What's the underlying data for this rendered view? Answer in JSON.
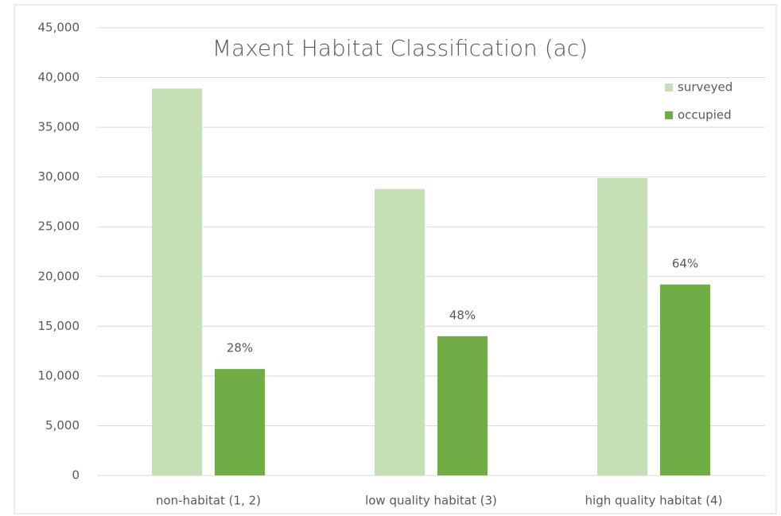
{
  "chart_data": {
    "type": "bar",
    "title": "Maxent Habitat Classification (ac)",
    "categories": [
      "non-habitat (1, 2)",
      "low quality habitat (3)",
      "high quality habitat (4)"
    ],
    "series": [
      {
        "name": "surveyed",
        "color": "#c5e0b4",
        "values": [
          38900,
          28800,
          29900
        ]
      },
      {
        "name": "occupied",
        "color": "#70ad47",
        "values": [
          10700,
          14000,
          19200
        ],
        "annotations": [
          "28%",
          "48%",
          "64%"
        ]
      }
    ],
    "ylim": [
      0,
      45000
    ],
    "yticks": [
      0,
      {
        "value": 5000,
        "label": "5,000"
      },
      {
        "value": 10000,
        "label": "10,000"
      },
      {
        "value": 15000,
        "label": "15,000"
      },
      {
        "value": 20000,
        "label": "20,000"
      },
      {
        "value": 25000,
        "label": "25,000"
      },
      {
        "value": 30000,
        "label": "30,000"
      },
      {
        "value": 35000,
        "label": "35,000"
      },
      {
        "value": 40000,
        "label": "40,000"
      },
      {
        "value": 45000,
        "label": "45,000"
      }
    ],
    "grid": true,
    "legend": "top-right"
  }
}
